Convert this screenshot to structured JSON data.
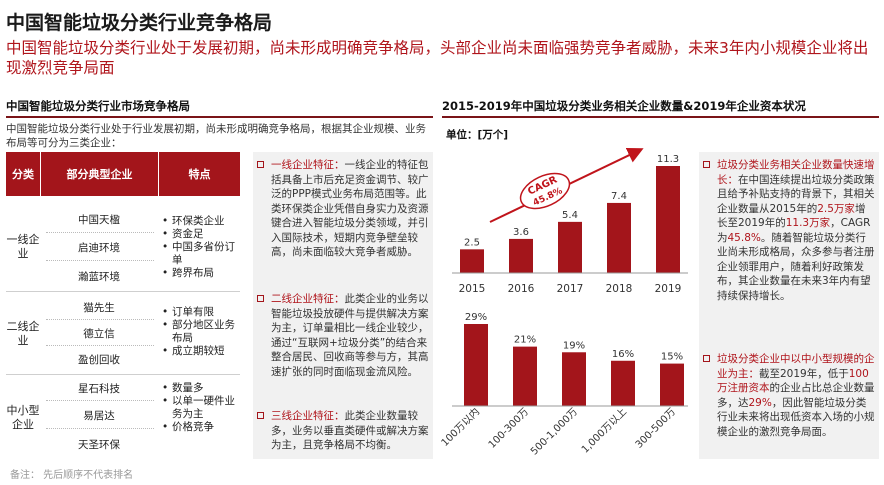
{
  "header": {
    "title": "中国智能垃圾分类行业竞争格局",
    "subtitle": "中国智能垃圾分类行业处于发展初期，尚未形成明确竞争格局，头部企业尚未面临强势竞争者威胁，未来3年内小规模企业将出现激烈竞争局面"
  },
  "left_panel": {
    "heading": "中国智能垃圾分类行业市场竞争格局",
    "intro": "中国智能垃圾分类行业处于行业发展初期，尚未形成明确竞争格局，根据其企业规模、业务布局等可分为三类企业：",
    "table": {
      "headers": [
        "分类",
        "部分典型企业",
        "特点"
      ],
      "rows": [
        {
          "category": "一线企业",
          "companies": [
            "中国天楹",
            "启迪环境",
            "瀚蓝环境"
          ],
          "features": [
            "环保类企业",
            "资金足",
            "中国多省份订单",
            "跨界布局"
          ]
        },
        {
          "category": "二线企业",
          "companies": [
            "猫先生",
            "德立信",
            "盈创回收"
          ],
          "features": [
            "订单有限",
            "部分地区业务布局",
            "成立期较短"
          ]
        },
        {
          "category": "中小型企业",
          "companies": [
            "星石科技",
            "易居达",
            "天圣环保"
          ],
          "features": [
            "数量多",
            "以单一硬件业务为主",
            "价格竞争"
          ]
        }
      ]
    },
    "descriptions": [
      {
        "label": "一线企业特征：",
        "text": "一线企业的特征包括具备上市后充足资金调节、较广泛的PPP模式业务布局范围等。此类环保类企业凭借自身实力及资源键合进入智能垃圾分类领域，并引入国际技术，短期内竞争壁垒较高，尚未面临较大竞争者威胁。"
      },
      {
        "label": "二线企业特征：",
        "text": "此类企业的业务以智能垃圾投放硬件与提供解决方案为主，订单量相比一线企业较少，通过“互联网+垃圾分类”的结合来整合居民、回收商等参与方，其高速扩张的同时面临现金流风险。"
      },
      {
        "label": "三线企业特征：",
        "text": "此类企业数量较多，业务以垂直类硬件或解决方案为主，且竞争格局不均衡。"
      }
    ],
    "note": "备注：   先后顺序不代表排名"
  },
  "right_panel": {
    "heading": "2015-2019年中国垃圾分类业务相关企业数量&2019年企业资本状况",
    "unit": "单位：[万个]",
    "cagr_label": "CAGR",
    "cagr_value": "45.8%",
    "side_items": [
      {
        "label": "垃圾分类业务相关企业数量快速增长：",
        "pre": "在中国连续提出垃圾分类政策且给予补贴支持的背景下，其相关企业数量从2015年的",
        "hl1": "2.5万家",
        "mid": "增长至2019年的",
        "hl2": "11.3万家",
        "mid2": "，CAGR为",
        "hl3": "45.8%",
        "post": "。随着智能垃圾分类行业尚未形成格局，众多参与者注册企业领罪用户，随着利好政策发布，其企业数量在未来3年内有望持续保持增长。"
      },
      {
        "label": "垃圾分类企业中以中小型规模的企业为主：",
        "pre": "截至2019年，低于",
        "hl1": "100万注册资本",
        "mid": "的企业占比总企业数量多，达",
        "hl2": "29%",
        "post": "，因此智能垃圾分类行业未来将出现低资本入场的小规模企业的激烈竞争局面。"
      }
    ]
  },
  "chart_data": [
    {
      "type": "bar",
      "title": "2015-2019年中国垃圾分类业务相关企业数量",
      "ylabel": "单位：[万个]",
      "categories": [
        "2015",
        "2016",
        "2017",
        "2018",
        "2019"
      ],
      "values": [
        2.5,
        3.6,
        5.4,
        7.4,
        11.3
      ],
      "ylim": [
        0,
        12
      ],
      "color": "#a3151b",
      "annotation": "CAGR 45.8%"
    },
    {
      "type": "bar",
      "title": "2019年企业资本状况",
      "categories": [
        "100万以内",
        "100-300万",
        "500-1,000万",
        "1,000万以上",
        "300-500万"
      ],
      "values": [
        29,
        21,
        19,
        16,
        15
      ],
      "value_labels": [
        "29%",
        "21%",
        "19%",
        "16%",
        "15%"
      ],
      "ylim": [
        0,
        30
      ],
      "color": "#a3151b"
    }
  ]
}
